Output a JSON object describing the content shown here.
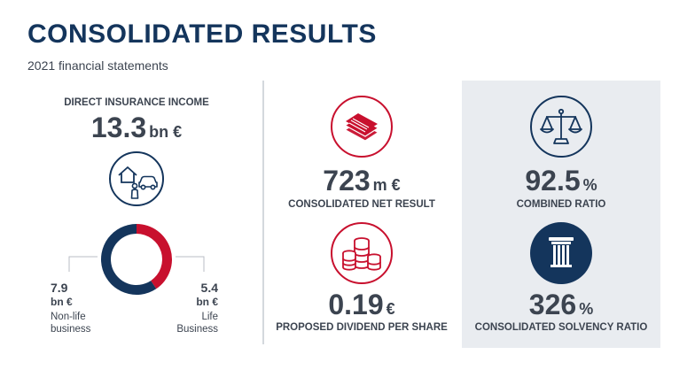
{
  "header": {
    "title": "CONSOLIDATED RESULTS",
    "subtitle": "2021 financial statements"
  },
  "colors": {
    "navy": "#14355c",
    "red": "#c8102e",
    "text": "#3c4450",
    "panel": "#e9ecf0"
  },
  "income": {
    "label": "DIRECT INSURANCE INCOME",
    "value": "13.3",
    "unit": "bn €",
    "icon": "house-person-car-icon",
    "nonlife": {
      "value": "7.9",
      "unit": "bn €",
      "line1": "Non-life",
      "line2": "business",
      "amount": 7.9
    },
    "life": {
      "value": "5.4",
      "unit": "bn €",
      "line1": "Life",
      "line2": "Business",
      "amount": 5.4
    }
  },
  "net_result": {
    "value": "723",
    "unit": "m €",
    "label": "CONSOLIDATED NET RESULT",
    "icon": "banknotes-icon"
  },
  "dividend": {
    "value": "0.19",
    "unit": "€",
    "label": "PROPOSED DIVIDEND PER SHARE",
    "icon": "coins-stack-icon"
  },
  "combined_ratio": {
    "value": "92.5",
    "unit": "%",
    "label": "COMBINED RATIO",
    "icon": "scales-icon"
  },
  "solvency": {
    "value": "326",
    "unit": "%",
    "label": "CONSOLIDATED SOLVENCY RATIO",
    "icon": "pillar-icon"
  }
}
